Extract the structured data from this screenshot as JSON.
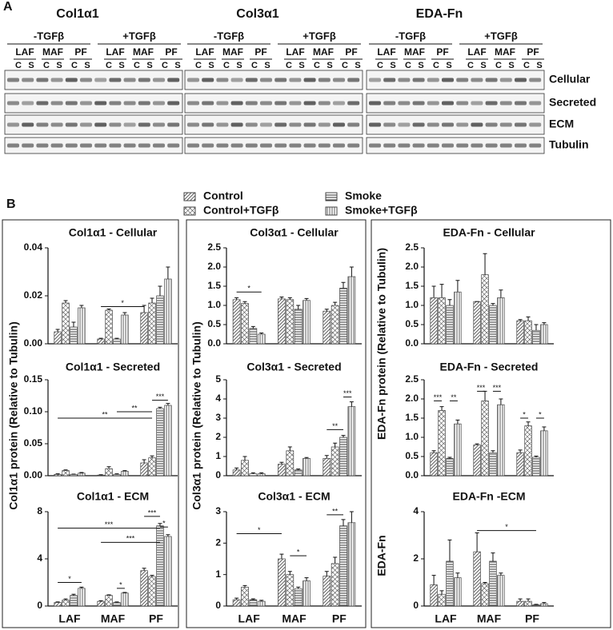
{
  "panel_a": {
    "label": "A",
    "blots": [
      {
        "title": "Col1α1",
        "conditions": [
          "-TGFβ",
          "+TGFβ"
        ],
        "cells": [
          "LAF",
          "MAF",
          "PF"
        ],
        "lanes": [
          "C",
          "S"
        ]
      },
      {
        "title": "Col3α1",
        "conditions": [
          "-TGFβ",
          "+TGFβ"
        ],
        "cells": [
          "LAF",
          "MAF",
          "PF"
        ],
        "lanes": [
          "C",
          "S"
        ]
      },
      {
        "title": "EDA-Fn",
        "conditions": [
          "-TGFβ",
          "+TGFβ"
        ],
        "cells": [
          "LAF",
          "MAF",
          "PF"
        ],
        "lanes": [
          "C",
          "S"
        ]
      }
    ],
    "rows": [
      "Cellular",
      "Secreted",
      "ECM",
      "Tubulin"
    ]
  },
  "panel_b": {
    "label": "B",
    "y_axis_labels": [
      "Col1α1 protein (Relative to Tubulin)",
      "Col3α1 protein (Relative to Tubulin)",
      "EDA-Fn protein (Relative to Tubulin)",
      "EDA-Fn"
    ]
  },
  "chart_data": [
    {
      "type": "bar",
      "title": "Col1α1 - Cellular",
      "categories": [
        null,
        null,
        null
      ],
      "ylim": [
        0,
        0.04
      ],
      "yticks": [
        {
          "value": 0,
          "label": "0.00"
        },
        0.02,
        0.04
      ],
      "series": [
        {
          "name": "Control",
          "color": "#444",
          "pattern": "diagonal",
          "values": [
            0.005,
            0.002,
            0.013
          ],
          "errors": [
            0.001,
            0.0003,
            0.003
          ]
        },
        {
          "name": "Control+TGFβ",
          "color": "#444",
          "pattern": "cross",
          "values": [
            0.017,
            0.014,
            0.017
          ],
          "errors": [
            0.001,
            0.0005,
            0.002
          ]
        },
        {
          "name": "Smoke",
          "color": "#444",
          "pattern": "horizontal",
          "values": [
            0.007,
            0.002,
            0.02
          ],
          "errors": [
            0.002,
            0.0003,
            0.004
          ]
        },
        {
          "name": "Smoke+TGFβ",
          "color": "#444",
          "pattern": "vertical",
          "values": [
            0.015,
            0.012,
            0.027
          ],
          "errors": [
            0.001,
            0.001,
            0.005
          ]
        }
      ],
      "annotations": [
        {
          "text": "*",
          "y": 0.0155
        }
      ]
    },
    {
      "type": "bar",
      "title": "Col1α1 - Secreted",
      "categories": [
        null,
        null,
        null
      ],
      "ylim": [
        0,
        0.15
      ],
      "yticks": [
        {
          "value": 0,
          "label": "0.00"
        },
        0.05,
        {
          "value": 0.1,
          "label": "0.10"
        },
        0.15
      ],
      "series": [
        {
          "name": "Control",
          "color": "#444",
          "pattern": "diagonal",
          "values": [
            0.002,
            0.001,
            0.02
          ],
          "errors": [
            0.001,
            0.0005,
            0.005
          ]
        },
        {
          "name": "Control+TGFβ",
          "color": "#444",
          "pattern": "cross",
          "values": [
            0.008,
            0.011,
            0.028
          ],
          "errors": [
            0.001,
            0.003,
            0.003
          ]
        },
        {
          "name": "Smoke",
          "color": "#444",
          "pattern": "horizontal",
          "values": [
            0.002,
            0.002,
            0.105
          ],
          "errors": [
            0.0005,
            0.001,
            0.002
          ]
        },
        {
          "name": "Smoke+TGFβ",
          "color": "#444",
          "pattern": "vertical",
          "values": [
            0.004,
            0.007,
            0.11
          ],
          "errors": [
            0.001,
            0.001,
            0.003
          ]
        }
      ],
      "annotations": [
        {
          "text": "***",
          "y": 0.118
        },
        {
          "text": "**",
          "y": 0.1
        },
        {
          "text": "**",
          "y": 0.09
        }
      ]
    },
    {
      "type": "bar",
      "title": "Col1α1 - ECM",
      "categories": [
        "LAF",
        "MAF",
        "PF"
      ],
      "ylim": [
        0,
        8
      ],
      "yticks": [
        0,
        4,
        8
      ],
      "series": [
        {
          "name": "Control",
          "color": "#444",
          "pattern": "diagonal",
          "values": [
            0.3,
            0.4,
            3
          ],
          "errors": [
            0.05,
            0.05,
            0.2
          ]
        },
        {
          "name": "Control+TGFβ",
          "color": "#444",
          "pattern": "cross",
          "values": [
            0.5,
            0.9,
            2.5
          ],
          "errors": [
            0.1,
            0.05,
            0.1
          ]
        },
        {
          "name": "Smoke",
          "color": "#444",
          "pattern": "horizontal",
          "values": [
            0.9,
            0.3,
            6.8
          ],
          "errors": [
            0.1,
            0.05,
            0.2
          ]
        },
        {
          "name": "Smoke+TGFβ",
          "color": "#444",
          "pattern": "vertical",
          "values": [
            1.5,
            1.1,
            5.9
          ],
          "errors": [
            0.1,
            0.05,
            0.15
          ]
        }
      ],
      "annotations": [
        {
          "text": "***",
          "y": 7.6
        },
        {
          "text": "*",
          "y": 6.7
        },
        {
          "text": "***",
          "y": 6.6
        },
        {
          "text": "***",
          "y": 5.4
        },
        {
          "text": "*",
          "y": 2
        },
        {
          "text": "*",
          "y": 1.5
        }
      ]
    },
    {
      "type": "bar",
      "title": "Col3α1 - Cellular",
      "categories": [
        null,
        null,
        null
      ],
      "ylim": [
        0,
        2.5
      ],
      "yticks": [
        {
          "value": 0,
          "label": "0.0"
        },
        0.5,
        {
          "value": 1,
          "label": "1.0"
        },
        1.5,
        {
          "value": 2,
          "label": "2.0"
        },
        2.5
      ],
      "series": [
        {
          "name": "Control",
          "color": "#444",
          "pattern": "diagonal",
          "values": [
            1.15,
            1.17,
            0.85
          ],
          "errors": [
            0.05,
            0.05,
            0.05
          ]
        },
        {
          "name": "Control+TGFβ",
          "color": "#444",
          "pattern": "cross",
          "values": [
            1.05,
            1.15,
            1
          ],
          "errors": [
            0.05,
            0.05,
            0.08
          ]
        },
        {
          "name": "Smoke",
          "color": "#444",
          "pattern": "horizontal",
          "values": [
            0.4,
            0.9,
            1.45
          ],
          "errors": [
            0.05,
            0.1,
            0.15
          ]
        },
        {
          "name": "Smoke+TGFβ",
          "color": "#444",
          "pattern": "vertical",
          "values": [
            0.25,
            1.13,
            1.75
          ],
          "errors": [
            0.03,
            0.05,
            0.25
          ]
        }
      ],
      "annotations": [
        {
          "text": "*",
          "y": 1.35
        }
      ]
    },
    {
      "type": "bar",
      "title": "Col3α1 - Secreted",
      "categories": [
        null,
        null,
        null
      ],
      "ylim": [
        0,
        5
      ],
      "yticks": [
        0,
        1,
        2,
        3,
        4,
        5
      ],
      "series": [
        {
          "name": "Control",
          "color": "#444",
          "pattern": "diagonal",
          "values": [
            0.3,
            0.6,
            0.9
          ],
          "errors": [
            0.1,
            0.1,
            0.15
          ]
        },
        {
          "name": "Control+TGFβ",
          "color": "#444",
          "pattern": "cross",
          "values": [
            0.8,
            1.3,
            1.5
          ],
          "errors": [
            0.2,
            0.2,
            0.2
          ]
        },
        {
          "name": "Smoke",
          "color": "#444",
          "pattern": "horizontal",
          "values": [
            0.1,
            0.3,
            2
          ],
          "errors": [
            0.05,
            0.05,
            0.1
          ]
        },
        {
          "name": "Smoke+TGFβ",
          "color": "#444",
          "pattern": "vertical",
          "values": [
            0.1,
            0.9,
            3.6
          ],
          "errors": [
            0.05,
            0.05,
            0.25
          ]
        }
      ],
      "annotations": [
        {
          "text": "**",
          "y": 2.4
        },
        {
          "text": "***",
          "y": 4.1
        }
      ]
    },
    {
      "type": "bar",
      "title": "Col3α1 - ECM",
      "categories": [
        "LAF",
        "MAF",
        "PF"
      ],
      "ylim": [
        0,
        3
      ],
      "yticks": [
        0,
        1,
        2,
        3
      ],
      "series": [
        {
          "name": "Control",
          "color": "#444",
          "pattern": "diagonal",
          "values": [
            0.2,
            1.5,
            0.95
          ],
          "errors": [
            0.05,
            0.15,
            0.15
          ]
        },
        {
          "name": "Control+TGFβ",
          "color": "#444",
          "pattern": "cross",
          "values": [
            0.6,
            1,
            1.35
          ],
          "errors": [
            0.05,
            0.1,
            0.2
          ]
        },
        {
          "name": "Smoke",
          "color": "#444",
          "pattern": "horizontal",
          "values": [
            0.2,
            0.55,
            2.55
          ],
          "errors": [
            0.03,
            0.05,
            0.2
          ]
        },
        {
          "name": "Smoke+TGFβ",
          "color": "#444",
          "pattern": "vertical",
          "values": [
            0.15,
            0.8,
            2.65
          ],
          "errors": [
            0.03,
            0.1,
            0.35
          ]
        }
      ],
      "annotations": [
        {
          "text": "*",
          "y": 2.3
        },
        {
          "text": "*",
          "y": 1.6
        },
        {
          "text": "**",
          "y": 2.9
        }
      ]
    },
    {
      "type": "bar",
      "title": "EDA-Fn - Cellular",
      "categories": [
        null,
        null,
        null
      ],
      "ylim": [
        0,
        2.5
      ],
      "yticks": [
        {
          "value": 0,
          "label": "0.0"
        },
        0.5,
        {
          "value": 1,
          "label": "1.0"
        },
        1.5,
        {
          "value": 2,
          "label": "2.0"
        },
        2.5
      ],
      "series": [
        {
          "name": "Control",
          "color": "#444",
          "pattern": "diagonal",
          "values": [
            1.2,
            1.1,
            0.6
          ],
          "errors": [
            0.3,
            0,
            0.03
          ]
        },
        {
          "name": "Control+TGFβ",
          "color": "#444",
          "pattern": "cross",
          "values": [
            1.2,
            1.8,
            0.6
          ],
          "errors": [
            0.35,
            0.55,
            0.1
          ]
        },
        {
          "name": "Smoke",
          "color": "#444",
          "pattern": "horizontal",
          "values": [
            1,
            1,
            0.35
          ],
          "errors": [
            0.15,
            0.05,
            0.15
          ]
        },
        {
          "name": "Smoke+TGFβ",
          "color": "#444",
          "pattern": "vertical",
          "values": [
            1.35,
            1.2,
            0.5
          ],
          "errors": [
            0.3,
            0.2,
            0.05
          ]
        }
      ],
      "annotations": []
    },
    {
      "type": "bar",
      "title": "EDA-Fn - Secreted",
      "categories": [
        null,
        null,
        null
      ],
      "ylim": [
        0,
        2.5
      ],
      "yticks": [
        {
          "value": 0,
          "label": "0.0"
        },
        0.5,
        {
          "value": 1,
          "label": "1.0"
        },
        1.5,
        {
          "value": 2,
          "label": "2.0"
        },
        2.5
      ],
      "series": [
        {
          "name": "Control",
          "color": "#444",
          "pattern": "diagonal",
          "values": [
            0.6,
            0.8,
            0.6
          ],
          "errors": [
            0.05,
            0.03,
            0.07
          ]
        },
        {
          "name": "Control+TGFβ",
          "color": "#444",
          "pattern": "cross",
          "values": [
            1.7,
            1.95,
            1.3
          ],
          "errors": [
            0.1,
            0.25,
            0.1
          ]
        },
        {
          "name": "Smoke",
          "color": "#444",
          "pattern": "horizontal",
          "values": [
            0.45,
            0.6,
            0.48
          ],
          "errors": [
            0.03,
            0.05,
            0.03
          ]
        },
        {
          "name": "Smoke+TGFβ",
          "color": "#444",
          "pattern": "vertical",
          "values": [
            1.35,
            1.85,
            1.17
          ],
          "errors": [
            0.1,
            0.15,
            0.1
          ]
        }
      ],
      "annotations": [
        {
          "text": "***",
          "y": 1.95
        },
        {
          "text": "**",
          "y": 1.95
        },
        {
          "text": "***",
          "y": 2.2
        },
        {
          "text": "***",
          "y": 2.2
        },
        {
          "text": "*",
          "y": 1.5
        },
        {
          "text": "*",
          "y": 1.5
        }
      ]
    },
    {
      "type": "bar",
      "title": "EDA-Fn -ECM",
      "categories": [
        "LAF",
        "MAF",
        "PF"
      ],
      "ylim": [
        0,
        4
      ],
      "yticks": [
        0,
        2,
        4
      ],
      "series": [
        {
          "name": "Control",
          "color": "#444",
          "pattern": "diagonal",
          "values": [
            0.9,
            2.3,
            0.2
          ],
          "errors": [
            0.4,
            0.8,
            0.1
          ]
        },
        {
          "name": "Control+TGFβ",
          "color": "#444",
          "pattern": "cross",
          "values": [
            0.5,
            0.95,
            0.2
          ],
          "errors": [
            0.15,
            0.05,
            0.1
          ]
        },
        {
          "name": "Smoke",
          "color": "#444",
          "pattern": "horizontal",
          "values": [
            1.9,
            1.9,
            0.05
          ],
          "errors": [
            0.9,
            0.35,
            0.02
          ]
        },
        {
          "name": "Smoke+TGFβ",
          "color": "#444",
          "pattern": "vertical",
          "values": [
            1.2,
            1.3,
            0.1
          ],
          "errors": [
            0.2,
            0.1,
            0.05
          ]
        }
      ],
      "annotations": [
        {
          "text": "*",
          "y": 3.2
        }
      ]
    }
  ]
}
